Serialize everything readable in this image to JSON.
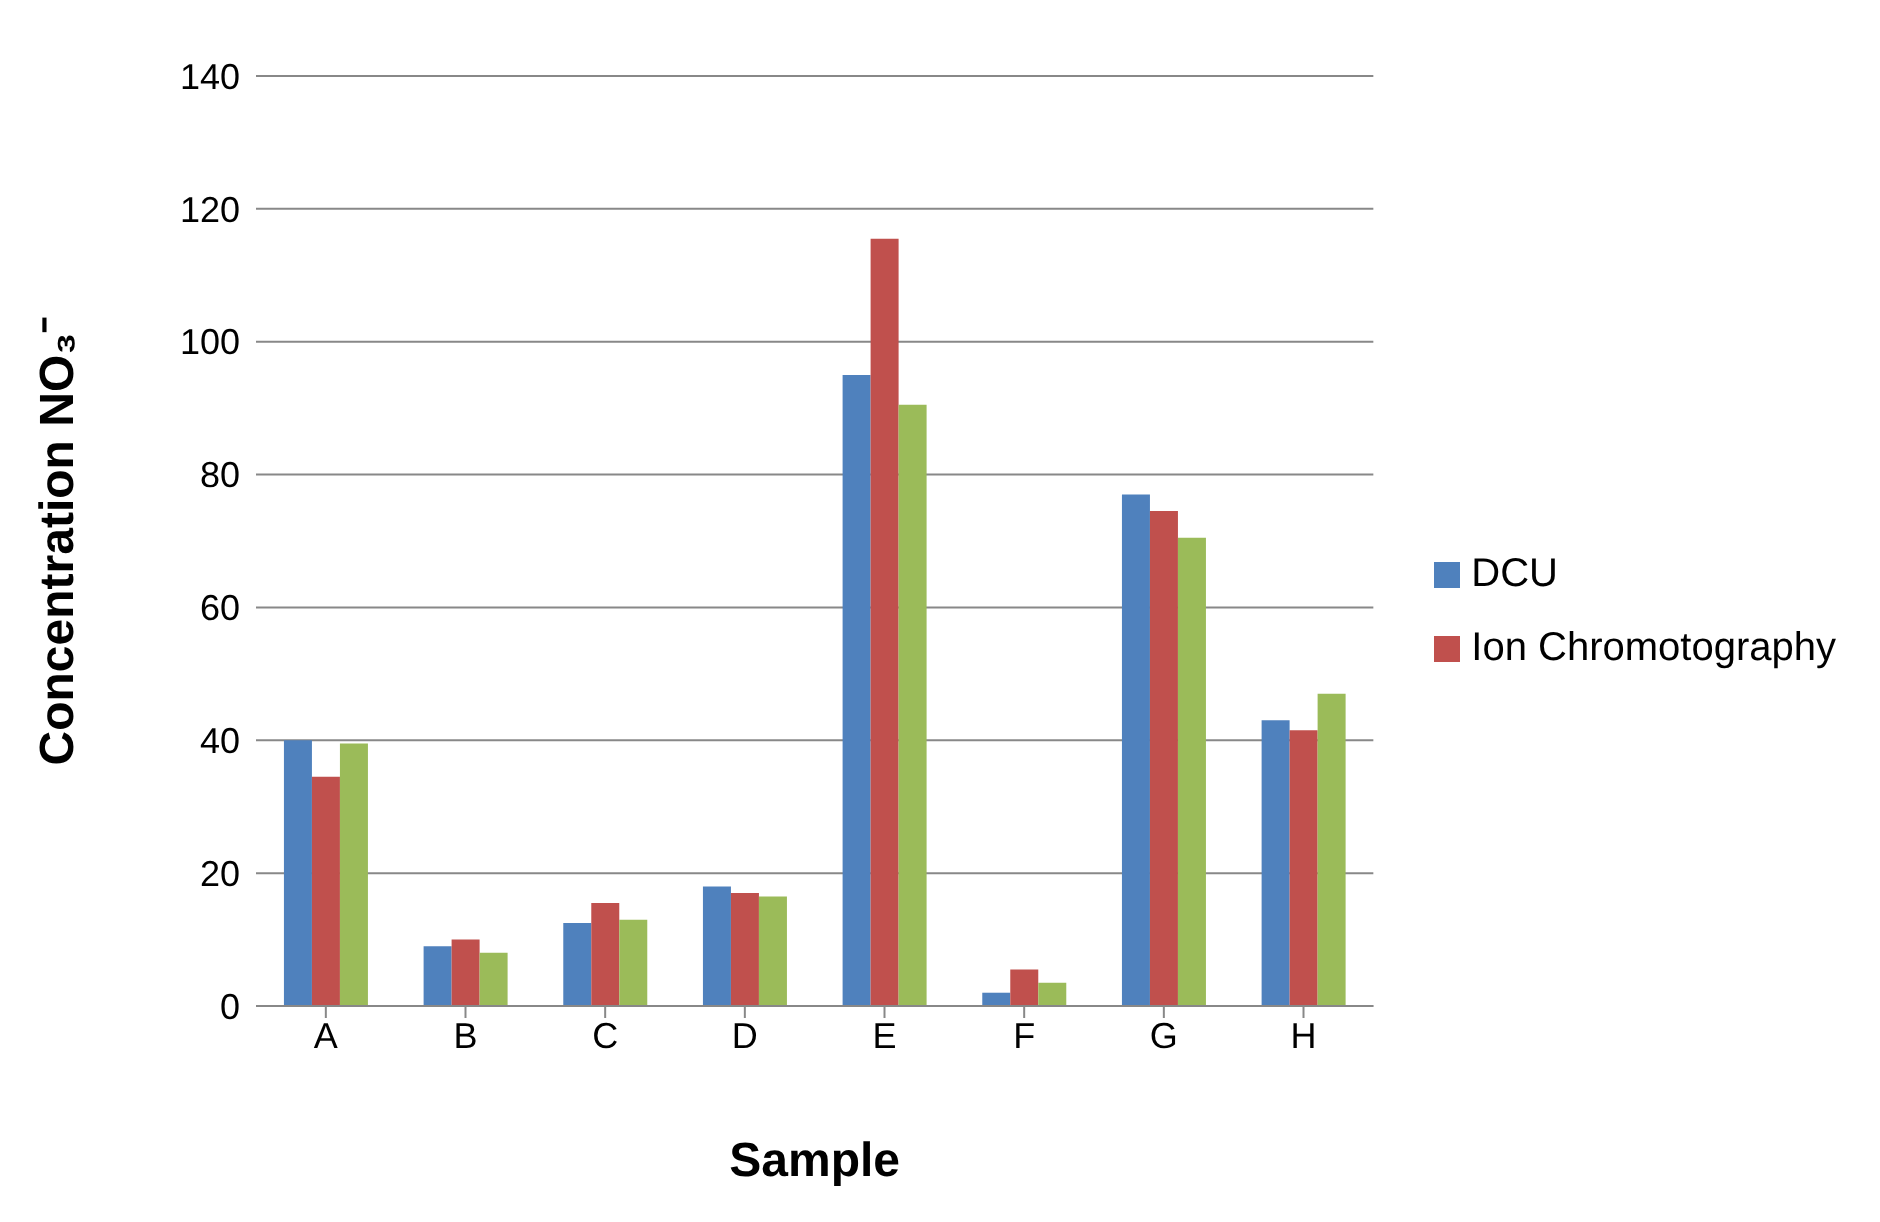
{
  "chart_data": {
    "type": "bar",
    "xlabel": "Sample",
    "ylabel": "Concentration NO₃⁻",
    "categories": [
      "A",
      "B",
      "C",
      "D",
      "E",
      "F",
      "G",
      "H"
    ],
    "series": [
      {
        "name": "DCU",
        "color": "#4f81bd",
        "values": [
          40,
          9,
          12.5,
          18,
          95,
          2,
          77,
          43
        ]
      },
      {
        "name": "Ion Chromotography",
        "color": "#c0504d",
        "values": [
          34.5,
          10,
          15.5,
          17,
          115.5,
          5.5,
          74.5,
          41.5
        ]
      },
      {
        "color": "#9bbb59",
        "values": [
          39.5,
          8,
          13,
          16.5,
          90.5,
          3.5,
          70.5,
          47
        ]
      }
    ],
    "ylim": [
      0,
      140
    ],
    "yticks": [
      0,
      20,
      40,
      60,
      80,
      100,
      120,
      140
    ],
    "grid": "y",
    "legend": "right"
  }
}
